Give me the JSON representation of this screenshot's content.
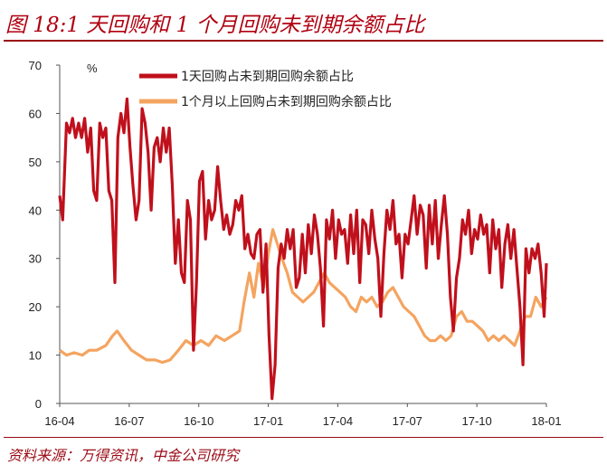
{
  "header": {
    "title": "图 18:1 天回购和 1 个月回购未到期余额占比"
  },
  "footer": {
    "source": "资料来源：万得资讯，中金公司研究"
  },
  "colors": {
    "series1": "#c0101c",
    "series2": "#f4a460",
    "accent": "#9b0b16"
  },
  "chart_data": {
    "type": "line",
    "ylabel": "%",
    "ylim": [
      0,
      70
    ],
    "yticks": [
      "0",
      "10",
      "20",
      "30",
      "40",
      "50",
      "60",
      "70"
    ],
    "xticks": [
      "16-04",
      "16-07",
      "16-10",
      "17-01",
      "17-04",
      "17-07",
      "17-10",
      "18-01"
    ],
    "legend_position": "top-right",
    "series": [
      {
        "name": "1天回购占未到期回购余额占比",
        "points": [
          [
            "2016-04-01",
            43
          ],
          [
            "2016-04-05",
            38
          ],
          [
            "2016-04-10",
            58
          ],
          [
            "2016-04-14",
            56
          ],
          [
            "2016-04-18",
            59
          ],
          [
            "2016-04-22",
            55
          ],
          [
            "2016-04-26",
            58
          ],
          [
            "2016-04-30",
            55
          ],
          [
            "2016-05-04",
            59
          ],
          [
            "2016-05-08",
            52
          ],
          [
            "2016-05-12",
            57
          ],
          [
            "2016-05-16",
            44
          ],
          [
            "2016-05-20",
            42
          ],
          [
            "2016-05-24",
            58
          ],
          [
            "2016-05-28",
            55
          ],
          [
            "2016-06-01",
            57
          ],
          [
            "2016-06-05",
            44
          ],
          [
            "2016-06-09",
            42
          ],
          [
            "2016-06-13",
            25
          ],
          [
            "2016-06-17",
            55
          ],
          [
            "2016-06-21",
            60
          ],
          [
            "2016-06-25",
            56
          ],
          [
            "2016-06-29",
            63
          ],
          [
            "2016-07-03",
            53
          ],
          [
            "2016-07-07",
            45
          ],
          [
            "2016-07-11",
            38
          ],
          [
            "2016-07-15",
            42
          ],
          [
            "2016-07-19",
            61
          ],
          [
            "2016-07-23",
            58
          ],
          [
            "2016-07-27",
            52
          ],
          [
            "2016-07-31",
            40
          ],
          [
            "2016-08-04",
            53
          ],
          [
            "2016-08-08",
            55
          ],
          [
            "2016-08-12",
            50
          ],
          [
            "2016-08-16",
            57
          ],
          [
            "2016-08-20",
            52
          ],
          [
            "2016-08-24",
            57
          ],
          [
            "2016-08-28",
            45
          ],
          [
            "2016-09-01",
            29
          ],
          [
            "2016-09-05",
            38
          ],
          [
            "2016-09-09",
            27
          ],
          [
            "2016-09-13",
            25
          ],
          [
            "2016-09-17",
            42
          ],
          [
            "2016-09-21",
            38
          ],
          [
            "2016-09-25",
            11
          ],
          [
            "2016-09-29",
            25
          ],
          [
            "2016-10-03",
            46
          ],
          [
            "2016-10-07",
            48
          ],
          [
            "2016-10-11",
            34
          ],
          [
            "2016-10-15",
            42
          ],
          [
            "2016-10-19",
            38
          ],
          [
            "2016-10-23",
            40
          ],
          [
            "2016-10-27",
            49
          ],
          [
            "2016-10-31",
            42
          ],
          [
            "2016-11-04",
            36
          ],
          [
            "2016-11-08",
            39
          ],
          [
            "2016-11-12",
            35
          ],
          [
            "2016-11-16",
            37
          ],
          [
            "2016-11-20",
            42
          ],
          [
            "2016-11-24",
            40
          ],
          [
            "2016-11-28",
            43
          ],
          [
            "2016-12-02",
            32
          ],
          [
            "2016-12-06",
            35
          ],
          [
            "2016-12-10",
            31
          ],
          [
            "2016-12-14",
            30
          ],
          [
            "2016-12-18",
            35
          ],
          [
            "2016-12-22",
            36
          ],
          [
            "2016-12-26",
            23
          ],
          [
            "2016-12-30",
            33
          ],
          [
            "2017-01-03",
            14
          ],
          [
            "2017-01-07",
            1
          ],
          [
            "2017-01-11",
            8
          ],
          [
            "2017-01-15",
            28
          ],
          [
            "2017-01-19",
            33
          ],
          [
            "2017-01-23",
            30
          ],
          [
            "2017-01-27",
            36
          ],
          [
            "2017-01-31",
            32
          ],
          [
            "2017-02-04",
            36
          ],
          [
            "2017-02-08",
            24
          ],
          [
            "2017-02-12",
            26
          ],
          [
            "2017-02-16",
            35
          ],
          [
            "2017-02-20",
            27
          ],
          [
            "2017-02-24",
            37
          ],
          [
            "2017-02-28",
            31
          ],
          [
            "2017-03-04",
            39
          ],
          [
            "2017-03-08",
            35
          ],
          [
            "2017-03-12",
            28
          ],
          [
            "2017-03-16",
            16
          ],
          [
            "2017-03-20",
            38
          ],
          [
            "2017-03-24",
            34
          ],
          [
            "2017-03-28",
            40
          ],
          [
            "2017-04-01",
            30
          ],
          [
            "2017-04-05",
            38
          ],
          [
            "2017-04-09",
            35
          ],
          [
            "2017-04-13",
            36
          ],
          [
            "2017-04-17",
            29
          ],
          [
            "2017-04-21",
            39
          ],
          [
            "2017-04-25",
            31
          ],
          [
            "2017-04-29",
            40
          ],
          [
            "2017-05-03",
            25
          ],
          [
            "2017-05-07",
            38
          ],
          [
            "2017-05-11",
            37
          ],
          [
            "2017-05-15",
            31
          ],
          [
            "2017-05-19",
            40
          ],
          [
            "2017-05-23",
            34
          ],
          [
            "2017-05-27",
            30
          ],
          [
            "2017-05-31",
            18
          ],
          [
            "2017-06-04",
            31
          ],
          [
            "2017-06-08",
            40
          ],
          [
            "2017-06-12",
            36
          ],
          [
            "2017-06-16",
            42
          ],
          [
            "2017-06-20",
            33
          ],
          [
            "2017-06-24",
            35
          ],
          [
            "2017-06-28",
            26
          ],
          [
            "2017-07-02",
            35
          ],
          [
            "2017-07-06",
            33
          ],
          [
            "2017-07-10",
            38
          ],
          [
            "2017-07-14",
            43
          ],
          [
            "2017-07-18",
            35
          ],
          [
            "2017-07-22",
            41
          ],
          [
            "2017-07-26",
            39
          ],
          [
            "2017-07-30",
            28
          ],
          [
            "2017-08-03",
            41
          ],
          [
            "2017-08-07",
            33
          ],
          [
            "2017-08-11",
            42
          ],
          [
            "2017-08-15",
            30
          ],
          [
            "2017-08-19",
            37
          ],
          [
            "2017-08-23",
            43
          ],
          [
            "2017-08-27",
            35
          ],
          [
            "2017-08-31",
            22
          ],
          [
            "2017-09-04",
            15
          ],
          [
            "2017-09-08",
            26
          ],
          [
            "2017-09-12",
            30
          ],
          [
            "2017-09-16",
            38
          ],
          [
            "2017-09-20",
            35
          ],
          [
            "2017-09-24",
            40
          ],
          [
            "2017-09-28",
            31
          ],
          [
            "2017-10-02",
            36
          ],
          [
            "2017-10-06",
            34
          ],
          [
            "2017-10-10",
            39
          ],
          [
            "2017-10-14",
            35
          ],
          [
            "2017-10-18",
            37
          ],
          [
            "2017-10-22",
            27
          ],
          [
            "2017-10-26",
            38
          ],
          [
            "2017-10-30",
            32
          ],
          [
            "2017-11-03",
            36
          ],
          [
            "2017-11-07",
            24
          ],
          [
            "2017-11-11",
            33
          ],
          [
            "2017-11-15",
            37
          ],
          [
            "2017-11-19",
            30
          ],
          [
            "2017-11-23",
            36
          ],
          [
            "2017-11-27",
            28
          ],
          [
            "2017-12-01",
            20
          ],
          [
            "2017-12-05",
            8
          ],
          [
            "2017-12-09",
            32
          ],
          [
            "2017-12-13",
            27
          ],
          [
            "2017-12-17",
            32
          ],
          [
            "2017-12-21",
            30
          ],
          [
            "2017-12-25",
            33
          ],
          [
            "2017-12-29",
            27
          ],
          [
            "2018-01-02",
            18
          ],
          [
            "2018-01-05",
            29
          ]
        ]
      },
      {
        "name": "1个月以上回购占未到期回购余额占比",
        "points": [
          [
            "2016-04-01",
            11
          ],
          [
            "2016-04-10",
            10
          ],
          [
            "2016-04-20",
            10.5
          ],
          [
            "2016-05-01",
            10
          ],
          [
            "2016-05-10",
            11
          ],
          [
            "2016-05-20",
            11
          ],
          [
            "2016-06-01",
            12
          ],
          [
            "2016-06-10",
            14
          ],
          [
            "2016-06-16",
            15
          ],
          [
            "2016-06-25",
            13
          ],
          [
            "2016-07-05",
            11
          ],
          [
            "2016-07-15",
            10
          ],
          [
            "2016-07-25",
            9
          ],
          [
            "2016-08-05",
            9
          ],
          [
            "2016-08-15",
            8.5
          ],
          [
            "2016-08-25",
            9
          ],
          [
            "2016-09-05",
            11
          ],
          [
            "2016-09-15",
            13
          ],
          [
            "2016-09-25",
            12
          ],
          [
            "2016-10-05",
            13
          ],
          [
            "2016-10-15",
            12
          ],
          [
            "2016-10-25",
            14
          ],
          [
            "2016-11-05",
            13
          ],
          [
            "2016-11-15",
            14
          ],
          [
            "2016-11-25",
            15
          ],
          [
            "2016-12-01",
            21
          ],
          [
            "2016-12-08",
            27
          ],
          [
            "2016-12-14",
            22
          ],
          [
            "2016-12-20",
            29
          ],
          [
            "2016-12-27",
            24
          ],
          [
            "2017-01-02",
            31
          ],
          [
            "2017-01-08",
            36
          ],
          [
            "2017-01-14",
            33
          ],
          [
            "2017-01-20",
            30
          ],
          [
            "2017-01-27",
            27
          ],
          [
            "2017-02-03",
            23
          ],
          [
            "2017-02-10",
            22
          ],
          [
            "2017-02-17",
            21
          ],
          [
            "2017-02-24",
            22
          ],
          [
            "2017-03-03",
            23
          ],
          [
            "2017-03-10",
            25
          ],
          [
            "2017-03-17",
            27
          ],
          [
            "2017-03-24",
            25
          ],
          [
            "2017-03-31",
            24
          ],
          [
            "2017-04-07",
            23
          ],
          [
            "2017-04-14",
            22
          ],
          [
            "2017-04-21",
            20
          ],
          [
            "2017-04-28",
            19
          ],
          [
            "2017-05-05",
            22
          ],
          [
            "2017-05-12",
            21
          ],
          [
            "2017-05-19",
            22
          ],
          [
            "2017-05-26",
            20
          ],
          [
            "2017-06-02",
            21
          ],
          [
            "2017-06-09",
            23
          ],
          [
            "2017-06-16",
            24
          ],
          [
            "2017-06-23",
            22
          ],
          [
            "2017-06-30",
            20
          ],
          [
            "2017-07-07",
            19
          ],
          [
            "2017-07-14",
            18
          ],
          [
            "2017-07-21",
            16
          ],
          [
            "2017-07-28",
            14
          ],
          [
            "2017-08-04",
            13
          ],
          [
            "2017-08-11",
            13
          ],
          [
            "2017-08-18",
            14
          ],
          [
            "2017-08-25",
            13
          ],
          [
            "2017-09-01",
            14
          ],
          [
            "2017-09-08",
            18
          ],
          [
            "2017-09-15",
            19
          ],
          [
            "2017-09-22",
            17
          ],
          [
            "2017-09-29",
            17
          ],
          [
            "2017-10-06",
            16
          ],
          [
            "2017-10-13",
            15
          ],
          [
            "2017-10-20",
            13
          ],
          [
            "2017-10-27",
            14
          ],
          [
            "2017-11-03",
            13
          ],
          [
            "2017-11-10",
            14
          ],
          [
            "2017-11-17",
            13
          ],
          [
            "2017-11-24",
            12
          ],
          [
            "2017-12-01",
            15
          ],
          [
            "2017-12-08",
            18
          ],
          [
            "2017-12-15",
            18
          ],
          [
            "2017-12-22",
            22
          ],
          [
            "2017-12-29",
            20
          ],
          [
            "2018-01-05",
            22
          ]
        ]
      }
    ]
  }
}
